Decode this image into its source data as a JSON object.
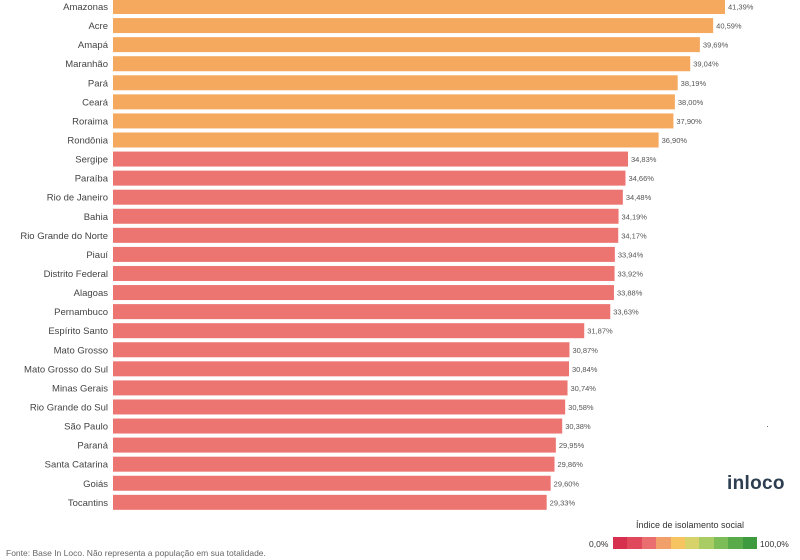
{
  "chart_data": {
    "type": "bar",
    "orientation": "horizontal",
    "categories": [
      "Amazonas",
      "Acre",
      "Amapá",
      "Maranhão",
      "Pará",
      "Ceará",
      "Roraima",
      "Rondônia",
      "Sergipe",
      "Paraíba",
      "Rio de Janeiro",
      "Bahia",
      "Rio Grande do Norte",
      "Piauí",
      "Distrito Federal",
      "Alagoas",
      "Pernambuco",
      "Espírito Santo",
      "Mato Grosso",
      "Mato Grosso do Sul",
      "Minas Gerais",
      "Rio Grande do Sul",
      "São Paulo",
      "Paraná",
      "Santa Catarina",
      "Goiás",
      "Tocantins"
    ],
    "values": [
      41.39,
      40.59,
      39.69,
      39.04,
      38.19,
      38.0,
      37.9,
      36.9,
      34.83,
      34.66,
      34.48,
      34.19,
      34.17,
      33.94,
      33.92,
      33.88,
      33.63,
      31.87,
      30.87,
      30.84,
      30.74,
      30.58,
      30.38,
      29.95,
      29.86,
      29.6,
      29.33
    ],
    "value_labels": [
      "41,39%",
      "40,59%",
      "39,69%",
      "39,04%",
      "38,19%",
      "38,00%",
      "37,90%",
      "36,90%",
      "34,83%",
      "34,66%",
      "34,48%",
      "34,19%",
      "34,17%",
      "33,94%",
      "33,92%",
      "33,88%",
      "33,63%",
      "31,87%",
      "30,87%",
      "30,84%",
      "30,74%",
      "30,58%",
      "30,38%",
      "29,95%",
      "29,86%",
      "29,60%",
      "29,33%"
    ],
    "bar_colors": [
      "#f5a95e",
      "#f5a95e",
      "#f5a95e",
      "#f5a95e",
      "#f5a95e",
      "#f5a95e",
      "#f5a95e",
      "#f5a95e",
      "#ec7572",
      "#ec7572",
      "#ec7572",
      "#ec7572",
      "#ec7572",
      "#ec7572",
      "#ec7572",
      "#ec7572",
      "#ec7572",
      "#ec7572",
      "#ec7572",
      "#ec7572",
      "#ec7572",
      "#ec7572",
      "#ec7572",
      "#ec7572",
      "#ec7572",
      "#ec7572",
      "#ec7572"
    ],
    "title": "",
    "xlabel": "",
    "ylabel": "",
    "xlim": [
      0,
      41.39
    ],
    "grid": false,
    "legend": {
      "title": "Índice de isolamento social",
      "min_label": "0,0%",
      "max_label": "100,0%",
      "colors": [
        "#d7304f",
        "#e0485c",
        "#ea6e70",
        "#f2a069",
        "#f6c461",
        "#d8d26a",
        "#a9cd64",
        "#7dbd58",
        "#58ab48",
        "#3d9a3e"
      ],
      "position": "bottom-right"
    }
  },
  "branding": {
    "logo": "inloco"
  },
  "footer": {
    "source": "Fonte: Base In Loco. Não representa a população em sua totalidade."
  },
  "misc": {
    "stray_tick": "·"
  }
}
